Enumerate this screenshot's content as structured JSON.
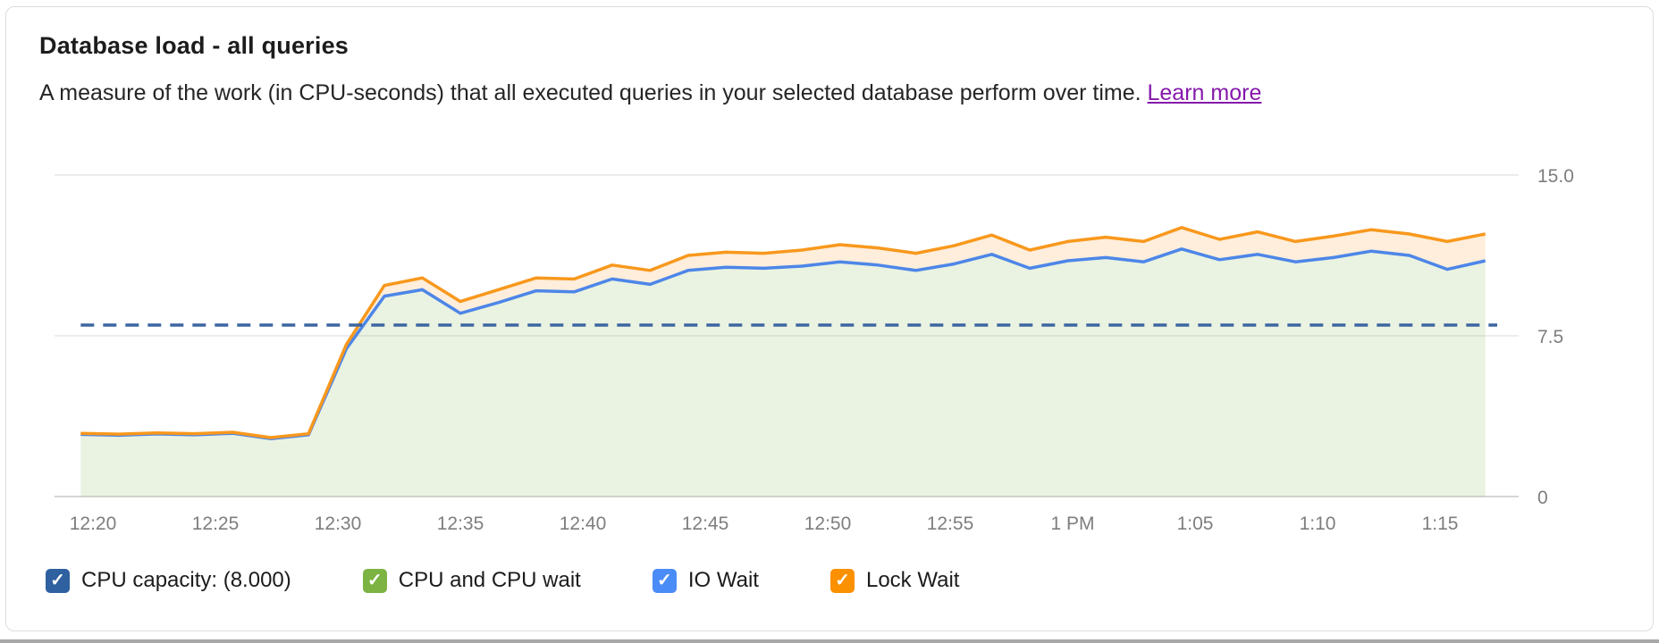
{
  "card": {
    "title": "Database load - all queries",
    "subtitle": "A measure of the work (in CPU-seconds) that all executed queries in your selected database perform over time.",
    "learn_more_label": "Learn more"
  },
  "colors": {
    "card_border": "#dadce0",
    "grid_line": "#ececec",
    "axis_line": "#d6d6d6",
    "axis_text": "#7e7e7e",
    "link_purple": "#8618ab",
    "bottom_divider": "#a8a8a8",
    "io_wait_line": "#4d86e8",
    "lock_wait_line": "#f8981d",
    "capacity_line": "#3d66a1",
    "green_fill": "rgba(124,179,66,0.16)",
    "orange_fill": "rgba(249,150,29,0.16)"
  },
  "legend": {
    "items": [
      {
        "label": "CPU capacity: (8.000)",
        "color": "#2f609f",
        "checked": true,
        "name": "cpu-capacity"
      },
      {
        "label": "CPU and CPU wait",
        "color": "#7cb342",
        "checked": true,
        "name": "cpu-and-cpu-wait"
      },
      {
        "label": "IO Wait",
        "color": "#4a8cf7",
        "checked": true,
        "name": "io-wait"
      },
      {
        "label": "Lock Wait",
        "color": "#fb9001",
        "checked": true,
        "name": "lock-wait"
      }
    ],
    "check_glyph": "✓"
  },
  "chart_data": {
    "type": "area",
    "title": "Database load - all queries",
    "xlabel": "",
    "ylabel": "CPU-seconds",
    "ylim": [
      0,
      15
    ],
    "grid": true,
    "legend_position": "bottom",
    "y_axis": {
      "tick_labels": [
        "15.0",
        "7.5",
        "0"
      ],
      "tick_values": [
        15,
        7.5,
        0
      ]
    },
    "x_axis": {
      "ticks": [
        {
          "label": "12:20",
          "minute": 1
        },
        {
          "label": "12:25",
          "minute": 6
        },
        {
          "label": "12:30",
          "minute": 11
        },
        {
          "label": "12:35",
          "minute": 16
        },
        {
          "label": "12:40",
          "minute": 21
        },
        {
          "label": "12:45",
          "minute": 26
        },
        {
          "label": "12:50",
          "minute": 31
        },
        {
          "label": "12:55",
          "minute": 36
        },
        {
          "label": "1 PM",
          "minute": 41
        },
        {
          "label": "1:05",
          "minute": 46
        },
        {
          "label": "1:10",
          "minute": 51
        },
        {
          "label": "1:15",
          "minute": 56
        }
      ]
    },
    "capacity_line": {
      "label": "CPU capacity: (8.000)",
      "value": 8.0,
      "style": "dashed"
    },
    "x_minutes": [
      0.5,
      2.05,
      3.6,
      5.15,
      6.7,
      8.25,
      9.8,
      11.35,
      12.9,
      14.45,
      16.0,
      17.55,
      19.1,
      20.65,
      22.2,
      23.75,
      25.3,
      26.85,
      28.4,
      29.95,
      31.5,
      33.05,
      34.6,
      36.15,
      37.7,
      39.25,
      40.8,
      42.35,
      43.9,
      45.45,
      47.0,
      48.55,
      50.1,
      51.65,
      53.2,
      54.75,
      56.3,
      57.85
    ],
    "series": [
      {
        "name": "IO Wait (stacked total of CPU, CPU wait and IO wait)",
        "values": [
          2.9,
          2.86,
          2.92,
          2.88,
          2.95,
          2.7,
          2.88,
          6.9,
          9.35,
          9.65,
          8.55,
          9.05,
          9.6,
          9.55,
          10.15,
          9.9,
          10.55,
          10.7,
          10.65,
          10.75,
          10.95,
          10.8,
          10.55,
          10.85,
          11.3,
          10.65,
          11.0,
          11.15,
          10.95,
          11.55,
          11.05,
          11.3,
          10.95,
          11.15,
          11.45,
          11.25,
          10.6,
          11.0
        ]
      },
      {
        "name": "Lock Wait (stacked total including lock wait)",
        "values": [
          2.95,
          2.91,
          2.97,
          2.93,
          3.0,
          2.75,
          2.93,
          7.1,
          9.85,
          10.2,
          9.1,
          9.65,
          10.2,
          10.15,
          10.8,
          10.55,
          11.25,
          11.4,
          11.35,
          11.5,
          11.75,
          11.6,
          11.35,
          11.7,
          12.2,
          11.5,
          11.9,
          12.1,
          11.9,
          12.55,
          12.0,
          12.35,
          11.9,
          12.15,
          12.45,
          12.25,
          11.9,
          12.25
        ]
      }
    ]
  }
}
